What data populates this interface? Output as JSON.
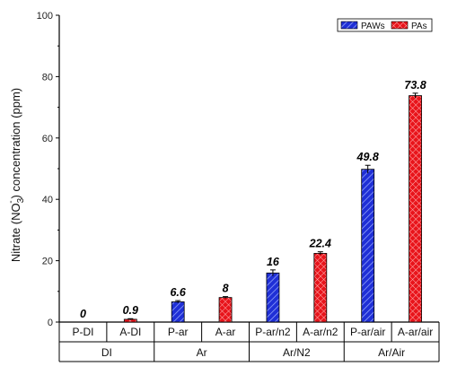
{
  "chart_data": {
    "type": "bar",
    "ylabel_parts": {
      "before": "Nitrate (NO",
      "sub": "3",
      "sup": "-",
      "after": ") concentration (ppm)"
    },
    "ylim": [
      0,
      100
    ],
    "yticks": [
      0,
      20,
      40,
      60,
      80,
      100
    ],
    "legend_position": "top-right",
    "series": [
      {
        "name": "PAWs",
        "color": "#1f2fd6",
        "pattern": "hatch-diagonal"
      },
      {
        "name": "PAs",
        "color": "#e8141b",
        "pattern": "crosshatch"
      }
    ],
    "categories": [
      "P-DI",
      "A-DI",
      "P-ar",
      "A-ar",
      "P-ar/n2",
      "A-ar/n2",
      "P-ar/air",
      "A-ar/air"
    ],
    "bars": [
      {
        "category": "P-DI",
        "series": "PAWs",
        "value": 0,
        "label": "0",
        "error": 0
      },
      {
        "category": "A-DI",
        "series": "PAs",
        "value": 0.9,
        "label": "0.9",
        "error": 0.2
      },
      {
        "category": "P-ar",
        "series": "PAWs",
        "value": 6.6,
        "label": "6.6",
        "error": 0.4
      },
      {
        "category": "A-ar",
        "series": "PAs",
        "value": 8,
        "label": "8",
        "error": 0.3
      },
      {
        "category": "P-ar/n2",
        "series": "PAWs",
        "value": 16,
        "label": "16",
        "error": 1.0
      },
      {
        "category": "A-ar/n2",
        "series": "PAs",
        "value": 22.4,
        "label": "22.4",
        "error": 0.5
      },
      {
        "category": "P-ar/air",
        "series": "PAWs",
        "value": 49.8,
        "label": "49.8",
        "error": 1.3
      },
      {
        "category": "A-ar/air",
        "series": "PAs",
        "value": 73.8,
        "label": "73.8",
        "error": 0.8
      }
    ],
    "groups": [
      {
        "label": "DI",
        "categories": [
          "P-DI",
          "A-DI"
        ]
      },
      {
        "label": "Ar",
        "categories": [
          "P-ar",
          "A-ar"
        ]
      },
      {
        "label": "Ar/N2",
        "categories": [
          "P-ar/n2",
          "A-ar/n2"
        ]
      },
      {
        "label": "Ar/Air",
        "categories": [
          "P-ar/air",
          "A-ar/air"
        ]
      }
    ]
  }
}
